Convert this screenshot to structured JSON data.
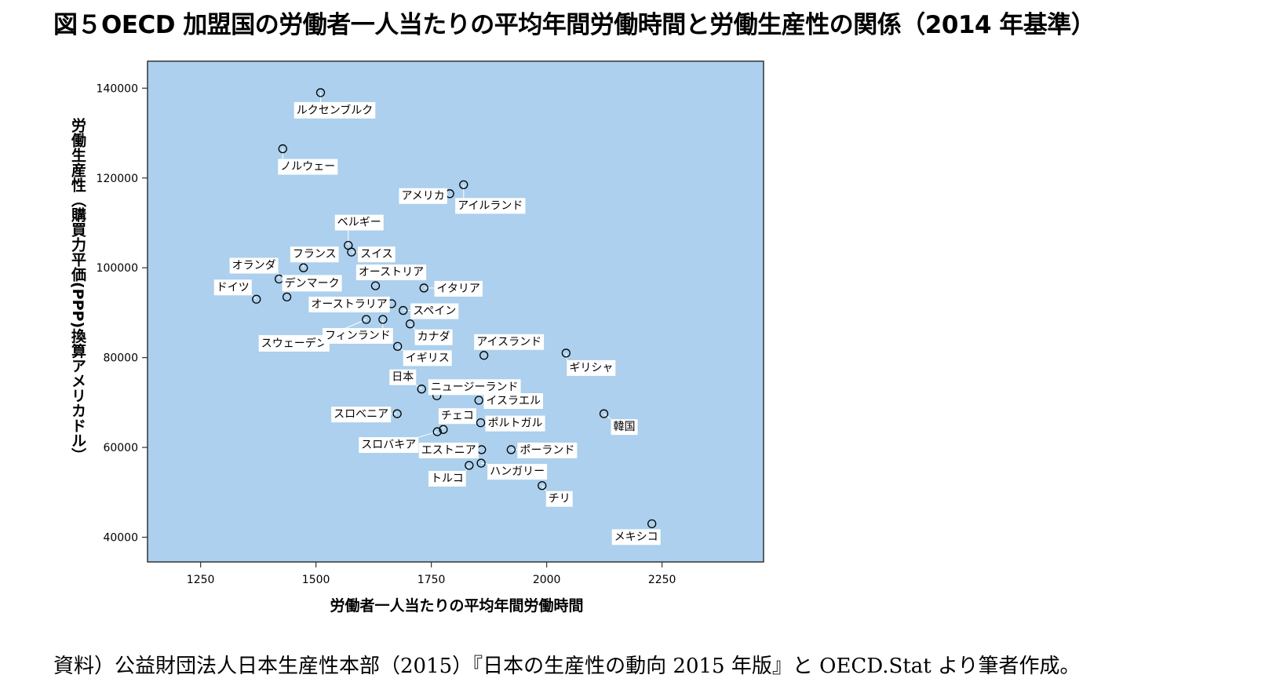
{
  "title": "図５OECD 加盟国の労働者一人当たりの平均年間労働時間と労働生産性の関係（2014 年基準）",
  "source": "資料）公益財団法人日本生産性本部（2015）『日本の生産性の動向 2015 年版』と OECD.Stat より筆者作成。",
  "chart_data": {
    "type": "scatter",
    "xlabel": "労働者一人当たりの平均年間労働時間",
    "ylabel": "労働生産性（購買力平価(PPP)換算アメリカドル）",
    "xlim": [
      1135,
      2470
    ],
    "ylim": [
      34500,
      146000
    ],
    "xticks": [
      1250,
      1500,
      1750,
      2000,
      2250
    ],
    "yticks": [
      40000,
      60000,
      80000,
      100000,
      120000,
      140000
    ],
    "grid": false,
    "legend": "none",
    "colors": {
      "plot_bg": "#acd0ed",
      "marker": "#000000",
      "label_bg": "#ffffff"
    },
    "points": [
      {
        "label": "ルクセンブルク",
        "x": 1510,
        "y": 139000
      },
      {
        "label": "ノルウェー",
        "x": 1428,
        "y": 126500
      },
      {
        "label": "アメリカ",
        "x": 1790,
        "y": 116500
      },
      {
        "label": "アイルランド",
        "x": 1820,
        "y": 118500
      },
      {
        "label": "ベルギー",
        "x": 1570,
        "y": 105000
      },
      {
        "label": "スイス",
        "x": 1577,
        "y": 103500
      },
      {
        "label": "フランス",
        "x": 1473,
        "y": 100000
      },
      {
        "label": "オランダ",
        "x": 1420,
        "y": 97500
      },
      {
        "label": "デンマーク",
        "x": 1437,
        "y": 93500
      },
      {
        "label": "オーストリア",
        "x": 1629,
        "y": 96000
      },
      {
        "label": "イタリア",
        "x": 1734,
        "y": 95500
      },
      {
        "label": "ドイツ",
        "x": 1371,
        "y": 93000
      },
      {
        "label": "オーストラリア",
        "x": 1664,
        "y": 92000
      },
      {
        "label": "スペイン",
        "x": 1689,
        "y": 90500
      },
      {
        "label": "スウェーデン",
        "x": 1609,
        "y": 88500
      },
      {
        "label": "フィンランド",
        "x": 1645,
        "y": 88500
      },
      {
        "label": "カナダ",
        "x": 1704,
        "y": 87500
      },
      {
        "label": "イギリス",
        "x": 1677,
        "y": 82500
      },
      {
        "label": "アイスランド",
        "x": 1864,
        "y": 80500
      },
      {
        "label": "ギリシャ",
        "x": 2042,
        "y": 81000
      },
      {
        "label": "日本",
        "x": 1729,
        "y": 73000
      },
      {
        "label": "ニュージーランド",
        "x": 1762,
        "y": 71500
      },
      {
        "label": "イスラエル",
        "x": 1853,
        "y": 70500
      },
      {
        "label": "スロベニア",
        "x": 1676,
        "y": 67500
      },
      {
        "label": "チェコ",
        "x": 1776,
        "y": 64000
      },
      {
        "label": "ポルトガル",
        "x": 1857,
        "y": 65500
      },
      {
        "label": "韓国",
        "x": 2124,
        "y": 67500
      },
      {
        "label": "スロバキア",
        "x": 1763,
        "y": 63500
      },
      {
        "label": "エストニア",
        "x": 1859,
        "y": 59500
      },
      {
        "label": "ポーランド",
        "x": 1923,
        "y": 59500
      },
      {
        "label": "トルコ",
        "x": 1832,
        "y": 56000
      },
      {
        "label": "ハンガリー",
        "x": 1858,
        "y": 56500
      },
      {
        "label": "チリ",
        "x": 1990,
        "y": 51500
      },
      {
        "label": "メキシコ",
        "x": 2228,
        "y": 43000
      }
    ]
  }
}
